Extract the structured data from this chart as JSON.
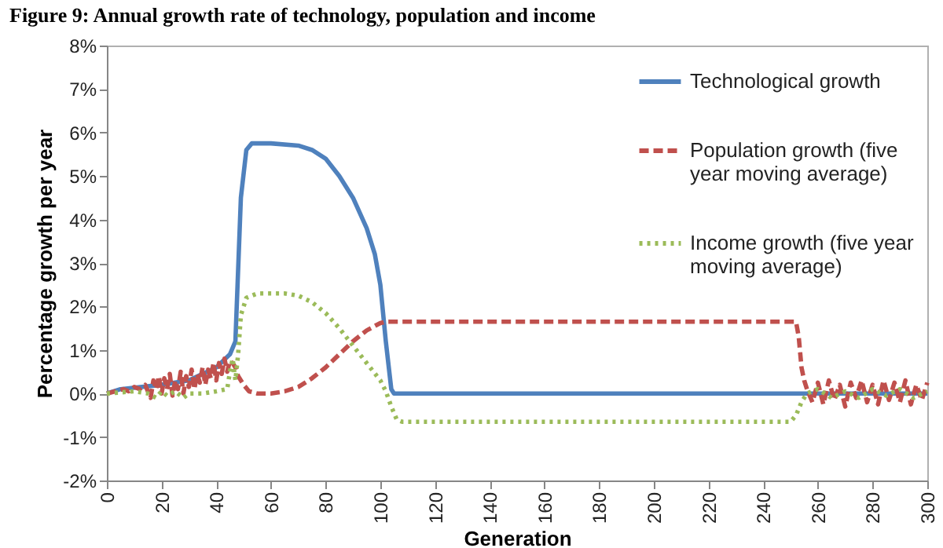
{
  "chart_data": {
    "type": "line",
    "title": "Figure 9: Annual growth rate of technology, population and income",
    "xlabel": "Generation",
    "ylabel": "Percentage growth per year",
    "xlim": [
      0,
      300
    ],
    "xticks": [
      0,
      20,
      40,
      60,
      80,
      100,
      120,
      140,
      160,
      180,
      200,
      220,
      240,
      260,
      280,
      300
    ],
    "ylim": [
      -2,
      8
    ],
    "yticks": [
      {
        "value": -2,
        "label": "-2%"
      },
      {
        "value": -1,
        "label": "-1%"
      },
      {
        "value": 0,
        "label": "0%"
      },
      {
        "value": 1,
        "label": "1%"
      },
      {
        "value": 2,
        "label": "2%"
      },
      {
        "value": 3,
        "label": "3%"
      },
      {
        "value": 4,
        "label": "4%"
      },
      {
        "value": 5,
        "label": "5%"
      },
      {
        "value": 6,
        "label": "6%"
      },
      {
        "value": 7,
        "label": "7%"
      },
      {
        "value": 8,
        "label": "8%"
      }
    ],
    "grid": false,
    "legend": "top right",
    "series": [
      {
        "name": "Technological growth",
        "color": "#4f81bd",
        "line_style": "solid",
        "x": [
          0,
          5,
          20,
          30,
          40,
          45,
          47,
          49,
          51,
          53,
          60,
          70,
          75,
          80,
          85,
          90,
          95,
          98,
          100,
          102,
          104,
          105,
          300
        ],
        "values": [
          0,
          0.1,
          0.2,
          0.3,
          0.6,
          0.9,
          1.2,
          4.5,
          5.6,
          5.75,
          5.75,
          5.7,
          5.6,
          5.4,
          5.0,
          4.5,
          3.8,
          3.2,
          2.5,
          1.2,
          0.1,
          0,
          0
        ]
      },
      {
        "name": "Population growth (five year moving average)",
        "color": "#c0504d",
        "line_style": "dashed",
        "x": [
          0,
          3,
          6,
          8,
          10,
          12,
          14,
          16,
          17,
          18,
          19,
          20,
          21,
          22,
          23,
          24,
          25,
          26,
          27,
          28,
          29,
          30,
          31,
          32,
          33,
          34,
          35,
          36,
          37,
          38,
          39,
          40,
          41,
          42,
          43,
          44,
          45,
          46,
          47,
          48,
          50,
          52,
          55,
          60,
          65,
          70,
          75,
          80,
          85,
          90,
          95,
          100,
          102,
          252,
          253,
          254,
          255,
          256,
          258,
          260,
          262,
          264,
          266,
          268,
          270,
          272,
          274,
          276,
          278,
          280,
          282,
          284,
          286,
          288,
          290,
          292,
          294,
          296,
          298,
          300
        ],
        "values": [
          0,
          0.05,
          0.1,
          0.05,
          0.15,
          0.1,
          0.2,
          -0.1,
          0.3,
          0.1,
          0.4,
          0,
          0.35,
          0.1,
          0.45,
          -0.05,
          0.3,
          0.1,
          0.5,
          0,
          0.4,
          0.15,
          0.55,
          0.1,
          0.45,
          0.25,
          0.6,
          0.2,
          0.55,
          0.35,
          0.7,
          0.3,
          0.7,
          0.45,
          0.8,
          0.5,
          0.75,
          0.7,
          0.6,
          0.4,
          0.2,
          0.05,
          0,
          0,
          0.05,
          0.15,
          0.35,
          0.6,
          0.9,
          1.2,
          1.45,
          1.62,
          1.65,
          1.65,
          1.3,
          0.6,
          0.3,
          0.1,
          -0.2,
          0.25,
          -0.25,
          0.3,
          -0.15,
          0.2,
          -0.3,
          0.25,
          -0.1,
          0.3,
          -0.2,
          0.2,
          -0.25,
          0.3,
          -0.15,
          0.25,
          -0.2,
          0.3,
          -0.25,
          0.2,
          -0.15,
          0.25
        ]
      },
      {
        "name": "Income growth (five year moving average)",
        "color": "#9bbb59",
        "line_style": "dotted",
        "x": [
          0,
          10,
          15,
          18,
          20,
          22,
          25,
          28,
          30,
          35,
          40,
          44,
          45,
          46,
          47,
          48,
          49,
          51,
          55,
          65,
          70,
          75,
          80,
          85,
          90,
          95,
          100,
          102,
          104,
          106,
          108,
          250,
          252,
          254,
          256,
          260,
          265,
          270,
          275,
          280,
          285,
          290,
          295,
          300
        ],
        "values": [
          0,
          0.05,
          0,
          -0.1,
          0.05,
          -0.05,
          0.05,
          -0.1,
          0,
          0,
          0.05,
          0.1,
          0.5,
          0.8,
          0.3,
          0.9,
          1.8,
          2.2,
          2.3,
          2.3,
          2.25,
          2.1,
          1.85,
          1.5,
          1.1,
          0.7,
          0.3,
          0.05,
          -0.3,
          -0.6,
          -0.65,
          -0.65,
          -0.5,
          -0.2,
          0,
          0.1,
          -0.1,
          0.05,
          -0.1,
          0.1,
          -0.05,
          0.1,
          -0.1,
          0.05
        ]
      }
    ]
  }
}
